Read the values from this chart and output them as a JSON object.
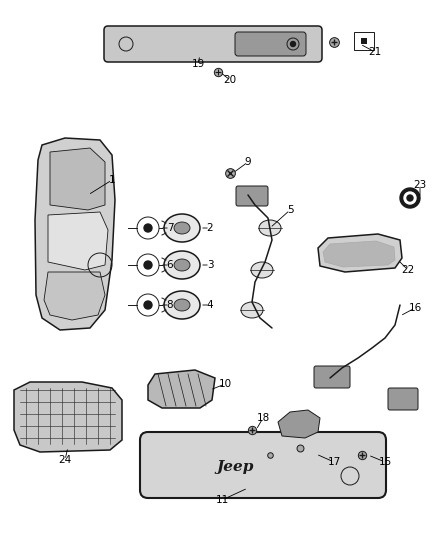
{
  "background_color": "#ffffff",
  "fig_width": 4.38,
  "fig_height": 5.33,
  "dpi": 100,
  "gray_dark": "#1a1a1a",
  "gray_med": "#666666",
  "gray_light": "#aaaaaa",
  "gray_fill": "#c8c8c8",
  "gray_mid": "#999999",
  "white": "#ffffff"
}
